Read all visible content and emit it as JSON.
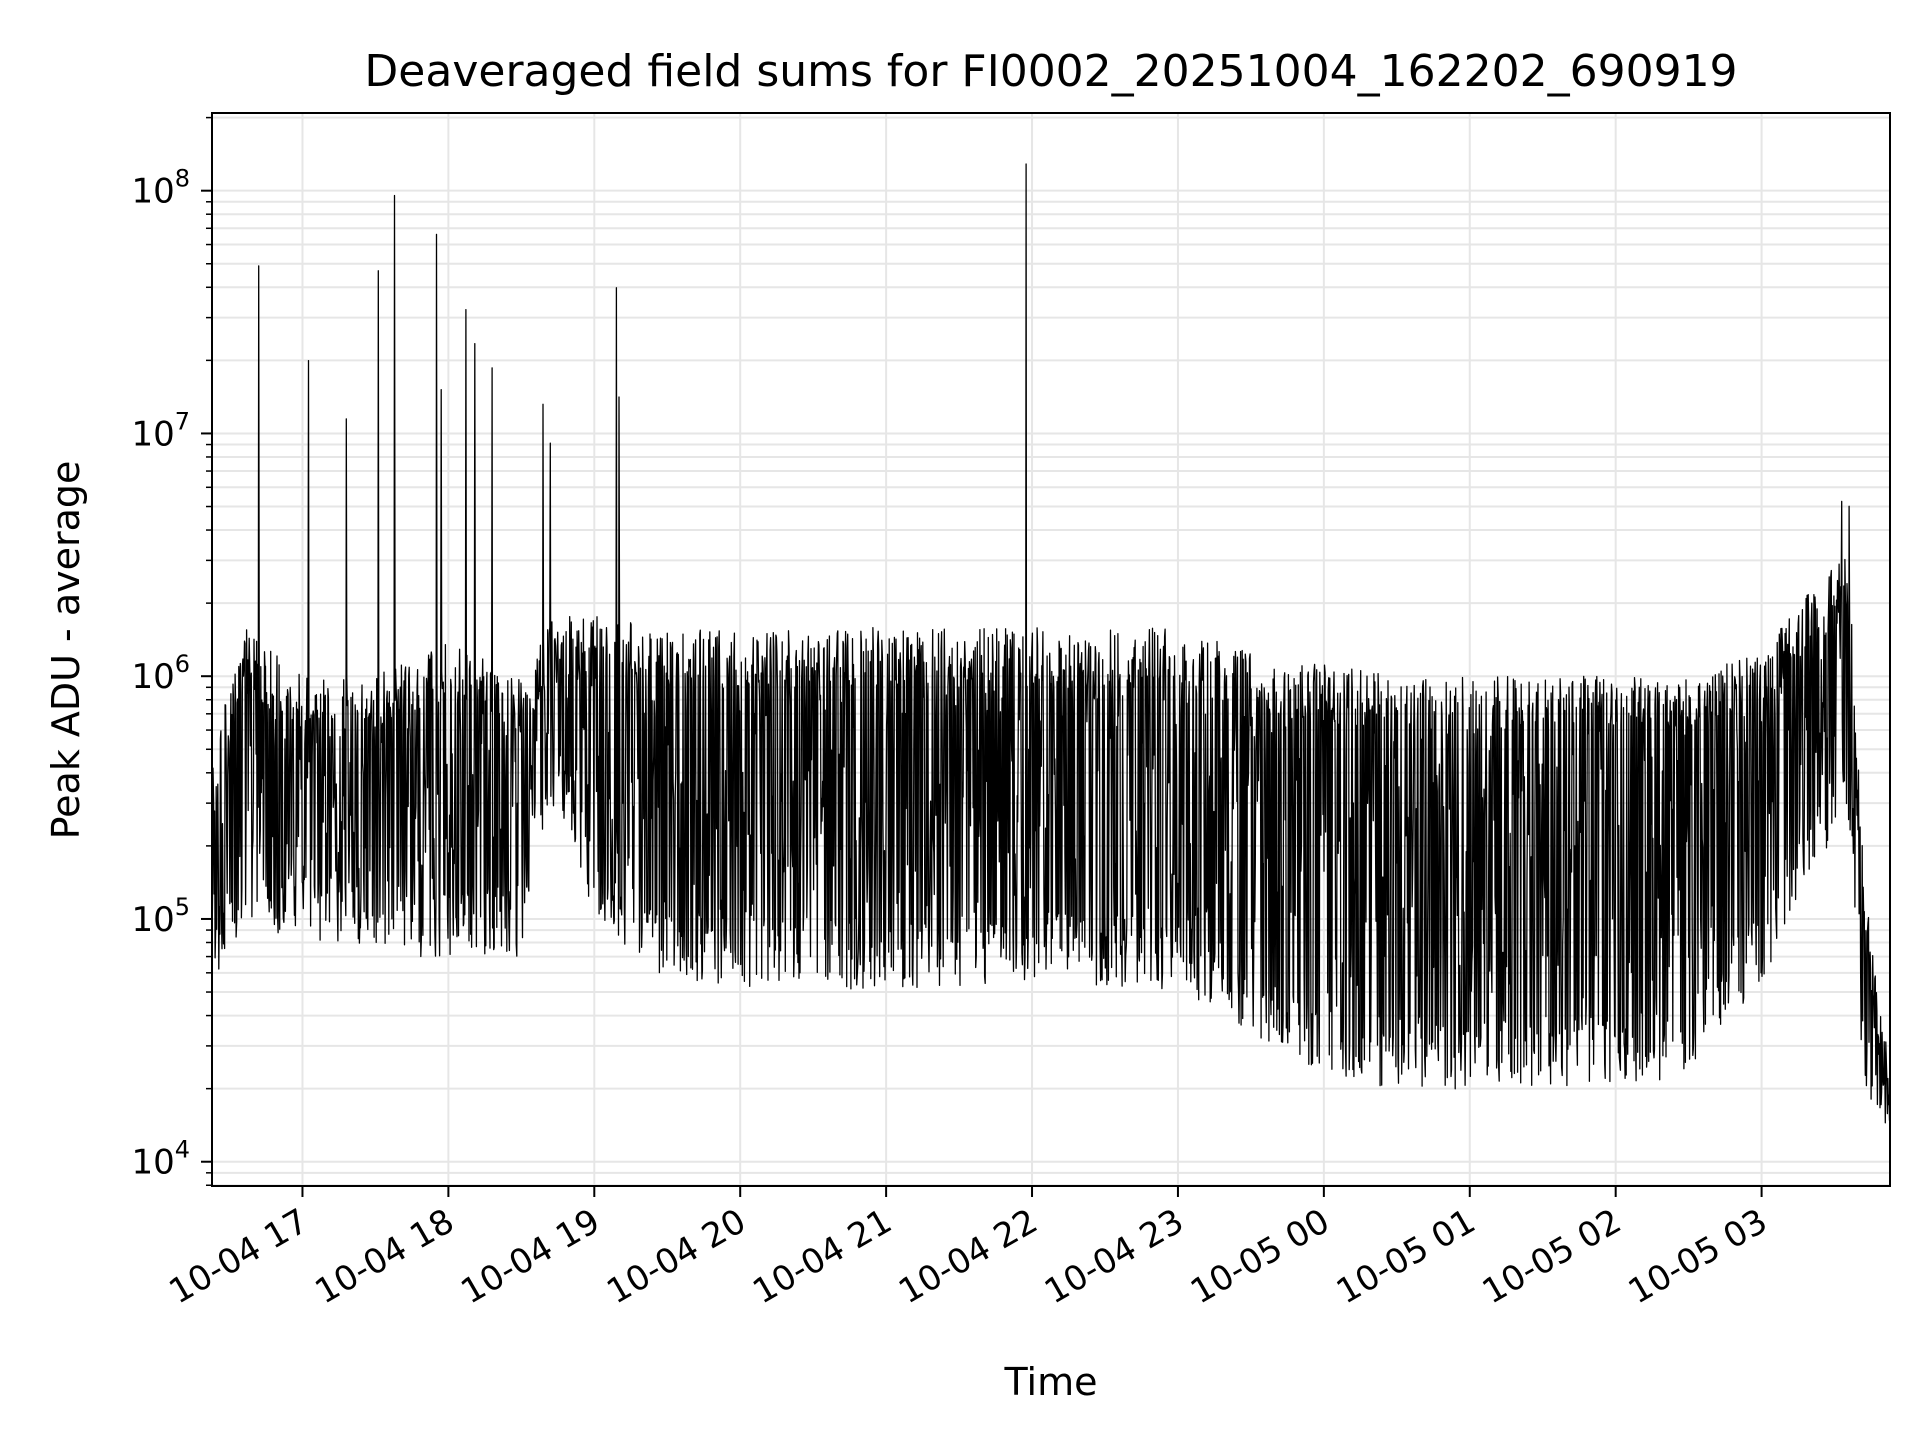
{
  "chart_data": {
    "type": "line",
    "title": "Deaveraged field sums for FI0002_20251004_162202_690919",
    "xlabel": "Time",
    "ylabel": "Peak ADU - average",
    "yscale": "log",
    "ylim_exp": [
      3.9,
      8.32
    ],
    "xlim_hours": [
      16.38,
      27.88
    ],
    "grid": true,
    "line_color": "#000000",
    "grid_color": "#e6e6e6",
    "x_ticks": [
      {
        "hour": 17,
        "label": "10-04 17"
      },
      {
        "hour": 18,
        "label": "10-04 18"
      },
      {
        "hour": 19,
        "label": "10-04 19"
      },
      {
        "hour": 20,
        "label": "10-04 20"
      },
      {
        "hour": 21,
        "label": "10-04 21"
      },
      {
        "hour": 22,
        "label": "10-04 22"
      },
      {
        "hour": 23,
        "label": "10-04 23"
      },
      {
        "hour": 24,
        "label": "10-05 00"
      },
      {
        "hour": 25,
        "label": "10-05 01"
      },
      {
        "hour": 26,
        "label": "10-05 02"
      },
      {
        "hour": 27,
        "label": "10-05 03"
      }
    ],
    "y_ticks": [
      {
        "exp": 4,
        "base": "10",
        "power": "4"
      },
      {
        "exp": 5,
        "base": "10",
        "power": "5"
      },
      {
        "exp": 6,
        "base": "10",
        "power": "6"
      },
      {
        "exp": 7,
        "base": "10",
        "power": "7"
      },
      {
        "exp": 8,
        "base": "10",
        "power": "8"
      }
    ],
    "envelope": [
      {
        "h": 16.38,
        "hi": 5.7,
        "lo": 4.7
      },
      {
        "h": 16.6,
        "hi": 6.2,
        "lo": 5.0
      },
      {
        "h": 17.0,
        "hi": 6.0,
        "lo": 4.9
      },
      {
        "h": 17.5,
        "hi": 6.0,
        "lo": 4.9
      },
      {
        "h": 18.0,
        "hi": 6.15,
        "lo": 4.8
      },
      {
        "h": 18.5,
        "hi": 6.0,
        "lo": 4.85
      },
      {
        "h": 18.7,
        "hi": 6.25,
        "lo": 5.5
      },
      {
        "h": 19.0,
        "hi": 6.25,
        "lo": 5.0
      },
      {
        "h": 19.5,
        "hi": 6.2,
        "lo": 4.75
      },
      {
        "h": 20.0,
        "hi": 6.2,
        "lo": 4.72
      },
      {
        "h": 21.0,
        "hi": 6.2,
        "lo": 4.7
      },
      {
        "h": 22.0,
        "hi": 6.2,
        "lo": 4.75
      },
      {
        "h": 23.0,
        "hi": 6.2,
        "lo": 4.7
      },
      {
        "h": 23.5,
        "hi": 6.1,
        "lo": 4.5
      },
      {
        "h": 24.0,
        "hi": 6.05,
        "lo": 4.35
      },
      {
        "h": 24.5,
        "hi": 6.0,
        "lo": 4.3
      },
      {
        "h": 25.0,
        "hi": 6.0,
        "lo": 4.3
      },
      {
        "h": 25.5,
        "hi": 6.0,
        "lo": 4.3
      },
      {
        "h": 26.0,
        "hi": 6.0,
        "lo": 4.3
      },
      {
        "h": 26.5,
        "hi": 6.0,
        "lo": 4.35
      },
      {
        "h": 27.0,
        "hi": 6.1,
        "lo": 4.75
      },
      {
        "h": 27.4,
        "hi": 6.4,
        "lo": 5.2
      },
      {
        "h": 27.6,
        "hi": 6.5,
        "lo": 5.4
      },
      {
        "h": 27.7,
        "hi": 5.2,
        "lo": 4.3
      },
      {
        "h": 27.88,
        "hi": 4.4,
        "lo": 4.1
      }
    ],
    "spikes": [
      {
        "h": 16.7,
        "v": 7.69
      },
      {
        "h": 17.04,
        "v": 7.3
      },
      {
        "h": 17.3,
        "v": 7.06
      },
      {
        "h": 17.52,
        "v": 7.67
      },
      {
        "h": 17.63,
        "v": 7.98
      },
      {
        "h": 17.92,
        "v": 7.82
      },
      {
        "h": 17.95,
        "v": 7.18
      },
      {
        "h": 18.12,
        "v": 7.51
      },
      {
        "h": 18.18,
        "v": 7.37
      },
      {
        "h": 18.3,
        "v": 7.27
      },
      {
        "h": 18.65,
        "v": 7.12
      },
      {
        "h": 18.7,
        "v": 6.96
      },
      {
        "h": 19.15,
        "v": 7.6
      },
      {
        "h": 19.17,
        "v": 7.15
      },
      {
        "h": 21.96,
        "v": 8.11
      },
      {
        "h": 27.55,
        "v": 6.72
      },
      {
        "h": 27.6,
        "v": 6.7
      }
    ]
  }
}
